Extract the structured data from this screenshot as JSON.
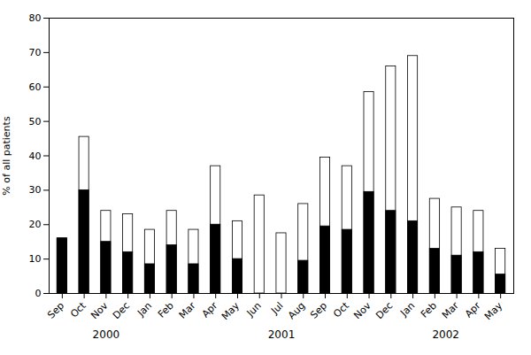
{
  "chart_data": {
    "type": "bar",
    "ylabel": "% of all patients",
    "categories": [
      "Sep",
      "Oct",
      "Nov",
      "Dec",
      "Jan",
      "Feb",
      "Mar",
      "Apr",
      "May",
      "Jun",
      "Jul",
      "Aug",
      "Sep",
      "Oct",
      "Nov",
      "Dec",
      "Jan",
      "Feb",
      "Mar",
      "Apr",
      "May"
    ],
    "series": [
      {
        "color": "#ffffff",
        "values": [
          16,
          45.5,
          24,
          23,
          18.5,
          24,
          18.5,
          37,
          21,
          28.5,
          17.5,
          26,
          39.5,
          37,
          58.5,
          66,
          69,
          27.5,
          25,
          24,
          13
        ]
      },
      {
        "color": "#000000",
        "values": [
          16,
          30,
          15,
          12,
          8.5,
          14,
          8.5,
          20,
          10,
          0,
          0,
          9.5,
          19.5,
          18.5,
          29.5,
          24,
          21,
          13,
          11,
          12,
          5.5
        ]
      }
    ],
    "stacked": false,
    "ylim": [
      0,
      80
    ],
    "yticks": [
      0,
      10,
      20,
      30,
      40,
      50,
      60,
      70,
      80
    ],
    "annotations": [
      {
        "text": "2000",
        "x": 2.0
      },
      {
        "text": "2001",
        "x": 10.0
      },
      {
        "text": "2002",
        "x": 17.5
      }
    ]
  }
}
